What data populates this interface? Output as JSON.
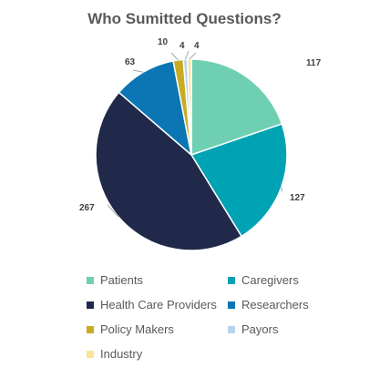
{
  "chart_data": {
    "type": "pie",
    "title": "Who Sumitted Questions?",
    "categories": [
      "Patients",
      "Caregivers",
      "Health Care Providers",
      "Researchers",
      "Policy Makers",
      "Payors",
      "Industry"
    ],
    "values": [
      117,
      127,
      267,
      63,
      10,
      4,
      4
    ],
    "value_labels": [
      "117",
      "127",
      "267",
      "63",
      "10",
      "4",
      "4"
    ],
    "colors": [
      "#6fcfb3",
      "#00a3b4",
      "#20294a",
      "#0b76b3",
      "#c9ac22",
      "#b9d3ee",
      "#f8e49a"
    ],
    "start_angle_deg": 0,
    "direction": "clockwise",
    "legend_position": "bottom",
    "legend_columns": 2
  }
}
